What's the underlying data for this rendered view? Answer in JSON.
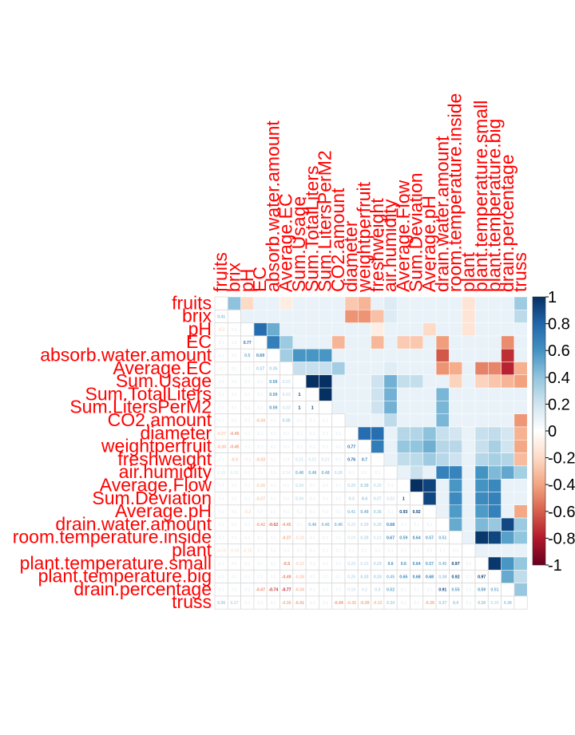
{
  "chart_data": {
    "type": "heatmap",
    "title": "",
    "xlabel": "",
    "ylabel": "",
    "upper_method": "color",
    "lower_method": "number",
    "color_scale": {
      "min": -1,
      "max": 1,
      "ticks": [
        "1",
        "0.8",
        "0.6",
        "0.4",
        "0.2",
        "0",
        "-0.2",
        "-0.4",
        "-0.6",
        "-0.8",
        "-1"
      ],
      "stops": [
        {
          "value": -1,
          "color": "#67001f"
        },
        {
          "value": -0.8,
          "color": "#b2182b"
        },
        {
          "value": -0.6,
          "color": "#d6604d"
        },
        {
          "value": -0.4,
          "color": "#f4a582"
        },
        {
          "value": -0.2,
          "color": "#fddbc7"
        },
        {
          "value": 0,
          "color": "#ffffff"
        },
        {
          "value": 0.2,
          "color": "#d1e5f0"
        },
        {
          "value": 0.4,
          "color": "#92c5de"
        },
        {
          "value": 0.6,
          "color": "#4393c3"
        },
        {
          "value": 0.8,
          "color": "#2166ac"
        },
        {
          "value": 1,
          "color": "#053061"
        }
      ]
    },
    "label_color": "#ff0000",
    "variables": [
      "fruits",
      "brix",
      "pH",
      "EC",
      "absorb.water.amount",
      "Average.EC",
      "Sum.Usage",
      "Sum.TotalLiters",
      "Sum.LitersPerM2",
      "CO2.amount",
      "diameter",
      "weightperfruit",
      "freshweight",
      "air.humidity",
      "Average.Flow",
      "Sum.Deviation",
      "Average.pH",
      "drain.water.amount",
      "room.temperature.inside",
      "plant",
      "plant.temperature.small",
      "plant.temperature.big",
      "drain.percentage",
      "truss"
    ],
    "matrix": [
      [
        null,
        0.41,
        -0.2,
        0.1,
        0.1,
        -0.1,
        0.1,
        0.1,
        0.1,
        0.1,
        -0.27,
        -0.34,
        0.1,
        0.15,
        0.1,
        0.1,
        0.1,
        0.1,
        0.1,
        -0.15,
        0.1,
        0.1,
        0.1,
        0.36
      ],
      [
        0.41,
        null,
        0.1,
        0.1,
        0.1,
        0.1,
        0.1,
        0.1,
        0.1,
        0.1,
        -0.45,
        -0.45,
        -0.3,
        0.15,
        0.1,
        0.1,
        0.1,
        0.1,
        0.1,
        -0.15,
        0.1,
        0.1,
        0.1,
        0.27
      ],
      [
        -0.2,
        0.1,
        null,
        0.77,
        0.5,
        0.1,
        0.1,
        0.1,
        0.1,
        0.1,
        0.1,
        0.1,
        -0.1,
        0.1,
        0.1,
        0.1,
        -0.2,
        0.1,
        0.1,
        -0.15,
        0.1,
        0.1,
        0.1,
        0.1
      ],
      [
        0.1,
        0.1,
        0.77,
        null,
        0.69,
        0.37,
        0.1,
        0.1,
        0.1,
        -0.34,
        0.1,
        0.1,
        -0.33,
        0.1,
        -0.26,
        -0.27,
        0.1,
        -0.42,
        0.1,
        0.1,
        0.1,
        0.1,
        -0.47,
        0.1
      ],
      [
        0.1,
        0.1,
        0.5,
        0.69,
        null,
        0.35,
        0.59,
        0.59,
        0.59,
        0.1,
        0.1,
        0.1,
        0.1,
        0.1,
        0.1,
        0.1,
        0.1,
        -0.62,
        0.1,
        0.1,
        0.1,
        0.1,
        -0.74,
        0.1
      ],
      [
        -0.1,
        0.1,
        0.1,
        0.37,
        0.35,
        null,
        0.23,
        0.23,
        0.23,
        0.35,
        0.1,
        0.1,
        0.1,
        0.14,
        0.1,
        0.1,
        0.1,
        -0.45,
        -0.37,
        0.1,
        -0.5,
        -0.49,
        -0.77,
        -0.36
      ],
      [
        0.1,
        0.1,
        0.1,
        0.1,
        0.59,
        0.23,
        null,
        1,
        1,
        0.1,
        0.1,
        0.1,
        0.21,
        0.48,
        0.24,
        0.24,
        0.1,
        0.1,
        -0.23,
        0.1,
        -0.23,
        -0.28,
        -0.34,
        -0.41
      ],
      [
        0.1,
        0.1,
        0.1,
        0.1,
        0.59,
        0.23,
        1,
        null,
        1,
        0.1,
        0.1,
        0.1,
        0.21,
        0.48,
        0.1,
        0.1,
        0.1,
        0.46,
        0.1,
        0.1,
        0.1,
        0.1,
        0.1,
        0.1
      ],
      [
        0.1,
        0.1,
        0.1,
        0.1,
        0.59,
        0.23,
        1,
        1,
        null,
        0.1,
        0.1,
        0.1,
        0.21,
        0.48,
        0.1,
        0.1,
        0.1,
        0.46,
        0.1,
        0.1,
        0.1,
        0.1,
        0.1,
        0.1
      ],
      [
        0.1,
        0.1,
        0.1,
        -0.34,
        0.1,
        0.35,
        0.1,
        0.1,
        0.1,
        null,
        0.1,
        0.1,
        0.1,
        0.26,
        0.1,
        0.1,
        0.1,
        0.46,
        0.1,
        0.1,
        0.1,
        0.1,
        0.1,
        -0.44
      ],
      [
        -0.27,
        -0.45,
        0.1,
        0.1,
        0.1,
        0.1,
        0.1,
        0.1,
        0.1,
        0.1,
        null,
        0.77,
        0.76,
        0.1,
        0.29,
        0.3,
        0.41,
        0.23,
        0.19,
        0.1,
        0.23,
        0.25,
        0.19,
        -0.35
      ],
      [
        -0.34,
        -0.45,
        0.1,
        0.1,
        0.1,
        0.1,
        0.1,
        0.1,
        0.1,
        0.1,
        0.77,
        null,
        0.7,
        0.1,
        0.39,
        0.4,
        0.49,
        0.29,
        0.28,
        0.1,
        0.23,
        0.33,
        0.2,
        -0.39
      ],
      [
        0.1,
        -0.3,
        -0.1,
        -0.33,
        0.1,
        0.1,
        0.21,
        0.21,
        0.21,
        0.1,
        0.76,
        0.7,
        null,
        0.1,
        0.25,
        0.27,
        0.36,
        0.28,
        0.21,
        0.1,
        0.29,
        0.33,
        0.3,
        -0.32
      ],
      [
        0.15,
        0.15,
        0.1,
        0.1,
        0.1,
        0.14,
        0.48,
        0.48,
        0.48,
        0.26,
        0.1,
        0.1,
        0.1,
        null,
        0.1,
        0.22,
        0.1,
        0.68,
        0.67,
        0.1,
        0.6,
        0.45,
        0.52,
        0.34
      ],
      [
        0.1,
        0.1,
        0.1,
        -0.26,
        0.1,
        0.1,
        0.24,
        0.1,
        0.1,
        0.1,
        0.29,
        0.39,
        0.25,
        0.1,
        null,
        1,
        0.93,
        0.1,
        0.59,
        0.1,
        0.6,
        0.65,
        0.1,
        0.1
      ],
      [
        0.1,
        0.1,
        0.1,
        -0.27,
        0.1,
        0.1,
        0.24,
        0.1,
        0.1,
        0.1,
        0.3,
        0.4,
        0.27,
        0.22,
        1,
        null,
        0.92,
        0.1,
        0.64,
        0.1,
        0.64,
        0.68,
        0.1,
        0.1
      ],
      [
        0.1,
        0.1,
        -0.2,
        0.1,
        0.1,
        0.1,
        0.1,
        0.1,
        0.1,
        0.1,
        0.41,
        0.49,
        0.36,
        0.1,
        0.93,
        0.92,
        null,
        0.1,
        0.57,
        0.1,
        0.57,
        0.68,
        0.1,
        -0.39
      ],
      [
        0.1,
        0.1,
        0.1,
        -0.42,
        -0.62,
        -0.45,
        0.1,
        0.46,
        0.46,
        0.46,
        0.23,
        0.29,
        0.28,
        0.68,
        0.1,
        0.1,
        0.1,
        null,
        0.51,
        0.1,
        0.45,
        0.38,
        0.91,
        0.37
      ],
      [
        0.1,
        0.1,
        0.1,
        0.1,
        0.1,
        -0.37,
        -0.23,
        0.1,
        0.1,
        0.1,
        0.19,
        0.28,
        0.21,
        0.67,
        0.59,
        0.64,
        0.57,
        0.51,
        null,
        0.1,
        0.97,
        0.92,
        0.55,
        0.4
      ],
      [
        -0.15,
        -0.15,
        -0.15,
        0.1,
        0.1,
        0.1,
        0.1,
        0.1,
        0.1,
        0.1,
        0.1,
        0.1,
        0.1,
        0.1,
        0.1,
        0.1,
        0.1,
        0.1,
        0.1,
        null,
        0.1,
        0.1,
        0.1,
        0.1
      ],
      [
        0.1,
        0.1,
        0.1,
        0.1,
        0.1,
        -0.5,
        -0.23,
        0.1,
        0.1,
        0.1,
        0.23,
        0.23,
        0.29,
        0.6,
        0.6,
        0.64,
        0.57,
        0.45,
        0.97,
        0.1,
        null,
        0.97,
        0.59,
        0.39
      ],
      [
        0.1,
        0.1,
        0.1,
        0.1,
        0.1,
        -0.49,
        -0.28,
        0.1,
        0.1,
        0.1,
        0.25,
        0.33,
        0.33,
        0.45,
        0.65,
        0.68,
        0.68,
        0.38,
        0.92,
        0.1,
        0.97,
        null,
        0.51,
        0.25
      ],
      [
        0.1,
        0.1,
        0.1,
        -0.47,
        -0.74,
        -0.77,
        -0.34,
        0.1,
        0.1,
        0.1,
        0.19,
        0.2,
        0.3,
        0.52,
        0.1,
        0.1,
        0.1,
        0.91,
        0.55,
        0.1,
        0.59,
        0.51,
        null,
        0.38
      ],
      [
        0.36,
        0.27,
        0.1,
        0.1,
        0.1,
        -0.36,
        -0.41,
        0.1,
        0.1,
        -0.44,
        -0.35,
        -0.39,
        -0.32,
        0.34,
        0.1,
        0.1,
        -0.39,
        0.37,
        0.4,
        0.1,
        0.39,
        0.25,
        0.38,
        null
      ]
    ]
  }
}
